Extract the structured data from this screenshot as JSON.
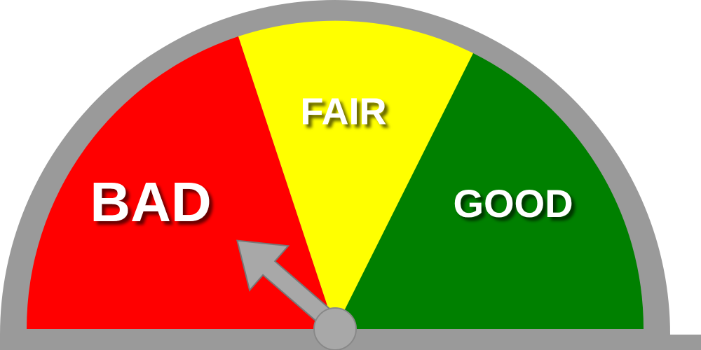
{
  "gauge": {
    "labels": [
      "BAD",
      "FAIR",
      "GOOD"
    ]
  }
}
